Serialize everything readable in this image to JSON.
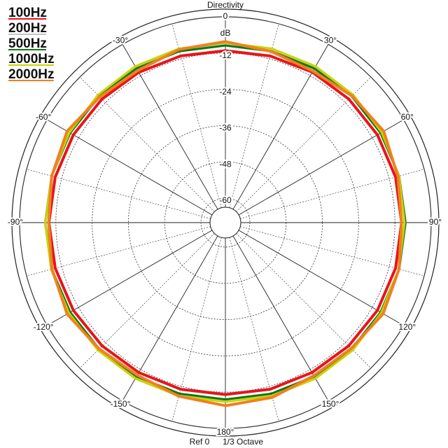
{
  "chart_data": {
    "type": "polar",
    "title": "Directivity",
    "r_label": "dB",
    "footer": [
      "Ref 0",
      "1/3 Octave"
    ],
    "rlim": [
      -63,
      0
    ],
    "rticks": [
      0,
      -12,
      -24,
      -36,
      -48,
      -60
    ],
    "theta_ticks": [
      {
        "value": 0,
        "label": "0"
      },
      {
        "value": 30,
        "label": "30°"
      },
      {
        "value": 60,
        "label": "60°"
      },
      {
        "value": 90,
        "label": "90°"
      },
      {
        "value": 120,
        "label": "120°"
      },
      {
        "value": 150,
        "label": "150°"
      },
      {
        "value": 180,
        "label": "180°"
      },
      {
        "value": -150,
        "label": "-150°"
      },
      {
        "value": -120,
        "label": "-120°"
      },
      {
        "value": -90,
        "label": "-90°"
      },
      {
        "value": -60,
        "label": "-60°"
      },
      {
        "value": -30,
        "label": "-30°"
      }
    ],
    "theta": [
      0,
      15,
      30,
      45,
      60,
      75,
      90,
      105,
      120,
      135,
      150,
      165,
      180,
      195,
      210,
      225,
      240,
      255,
      270,
      285,
      300,
      315,
      330,
      345
    ],
    "series": [
      {
        "name": "100Hz",
        "color": "#e8141c",
        "values": [
          -11.2,
          -11,
          -10.6,
          -10.3,
          -10,
          -9.8,
          -9.8,
          -9.8,
          -10,
          -10.4,
          -10.8,
          -11,
          -11.2,
          -11,
          -10.8,
          -10.4,
          -10,
          -9.8,
          -9.7,
          -9.8,
          -10,
          -10.3,
          -10.7,
          -11
        ]
      },
      {
        "name": "200Hz",
        "color": "#c4c4c4",
        "values": [
          -9.3,
          -9.2,
          -9,
          -8.8,
          -8.7,
          -8.5,
          -8.4,
          -8.5,
          -8.7,
          -8.9,
          -9.2,
          -9.4,
          -9.5,
          -9.4,
          -9.2,
          -8.9,
          -8.7,
          -8.5,
          -8.4,
          -8.5,
          -8.7,
          -8.9,
          -9.1,
          -9.2
        ]
      },
      {
        "name": "500Hz",
        "color": "#0a7a0a",
        "values": [
          -9.5,
          -9.4,
          -9.2,
          -9,
          -8.8,
          -8.6,
          -8.5,
          -8.6,
          -8.8,
          -9,
          -9.3,
          -9.5,
          -9.6,
          -9.5,
          -9.3,
          -9,
          -8.8,
          -8.6,
          -8.5,
          -8.6,
          -8.8,
          -9,
          -9.2,
          -9.4
        ]
      },
      {
        "name": "1000Hz",
        "color": "#c8d400",
        "values": [
          -8.6,
          -8.5,
          -8.4,
          -8.3,
          -8.4,
          -8.6,
          -8.8,
          -8.7,
          -8.5,
          -8.4,
          -8.5,
          -8.7,
          -8.8,
          -8.7,
          -8.5,
          -8.4,
          -8.3,
          -8.4,
          -8.5,
          -8.6,
          -8.5,
          -8.4,
          -8.4,
          -8.5
        ]
      },
      {
        "name": "2000Hz",
        "color": "#f08020",
        "values": [
          -8.2,
          -9.5,
          -10.2,
          -8.8,
          -7.6,
          -9,
          -9.8,
          -8.6,
          -7.8,
          -9.2,
          -9.6,
          -8.2,
          -7.5,
          -8.6,
          -9.8,
          -9,
          -7.6,
          -8.7,
          -9.6,
          -8.6,
          -7.6,
          -9.3,
          -10,
          -8.8
        ]
      }
    ]
  }
}
